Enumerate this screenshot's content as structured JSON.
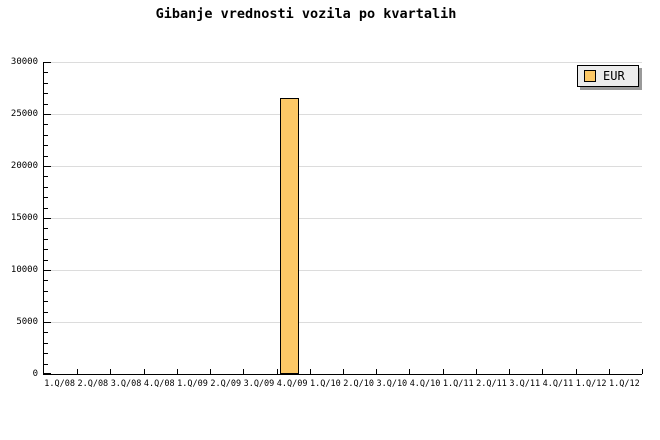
{
  "chart_data": {
    "type": "bar",
    "title": "Gibanje vrednosti vozila po kvartalih",
    "categories": [
      "1.Q/08",
      "2.Q/08",
      "3.Q/08",
      "4.Q/08",
      "1.Q/09",
      "2.Q/09",
      "3.Q/09",
      "4.Q/09",
      "1.Q/10",
      "2.Q/10",
      "3.Q/10",
      "4.Q/10",
      "1.Q/11",
      "2.Q/11",
      "3.Q/11",
      "4.Q/11",
      "1.Q/12",
      "1.Q/12"
    ],
    "series": [
      {
        "name": "EUR",
        "values": [
          0,
          0,
          0,
          0,
          0,
          0,
          0,
          26500,
          0,
          0,
          0,
          0,
          0,
          0,
          0,
          0,
          0,
          0
        ]
      }
    ],
    "xlabel": "",
    "ylabel": "",
    "ylim": [
      0,
      30000
    ],
    "ytick_step": 5000,
    "y_minor_tick_step": 1000,
    "yticklabels": [
      "0",
      "5000",
      "10000",
      "15000",
      "20000",
      "25000",
      "30000"
    ],
    "grid": "horizontal-major",
    "legend": {
      "position": "top-right",
      "entries": [
        "EUR"
      ]
    },
    "colors": {
      "bar_fill": "#FCC866",
      "bar_border": "#000000",
      "grid_line": "#DCDCDC",
      "axis": "#000000",
      "legend_bg": "#ECECEC",
      "legend_border": "#000000",
      "legend_shadow": "#999999",
      "text": "#000000",
      "background": "#FFFFFF"
    }
  }
}
